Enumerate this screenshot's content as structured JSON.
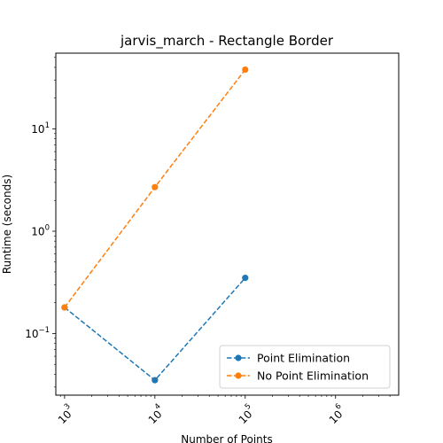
{
  "chart_data": {
    "type": "line",
    "title": "jarvis_march - Rectangle Border",
    "xlabel": "Number of Points",
    "ylabel": "Runtime (seconds)",
    "xscale": "log",
    "yscale": "log",
    "xlim": [
      800,
      5000000
    ],
    "ylim": [
      0.025,
      55
    ],
    "grid": false,
    "legend_position": "lower-right",
    "x_ticks": [
      {
        "value": 1000,
        "base": "10",
        "exp": "3"
      },
      {
        "value": 10000,
        "base": "10",
        "exp": "4"
      },
      {
        "value": 100000,
        "base": "10",
        "exp": "5"
      },
      {
        "value": 1000000,
        "base": "10",
        "exp": "6"
      }
    ],
    "y_ticks": [
      {
        "value": 0.1,
        "base": "10",
        "exp": "−1"
      },
      {
        "value": 1,
        "base": "10",
        "exp": "0"
      },
      {
        "value": 10,
        "base": "10",
        "exp": "1"
      }
    ],
    "series": [
      {
        "name": "Point Elimination",
        "color": "#1f77b4",
        "x": [
          1000,
          10000,
          100000
        ],
        "y": [
          0.18,
          0.035,
          0.35
        ]
      },
      {
        "name": "No Point Elimination",
        "color": "#ff7f0e",
        "x": [
          1000,
          10000,
          100000
        ],
        "y": [
          0.18,
          2.7,
          38
        ]
      }
    ]
  }
}
